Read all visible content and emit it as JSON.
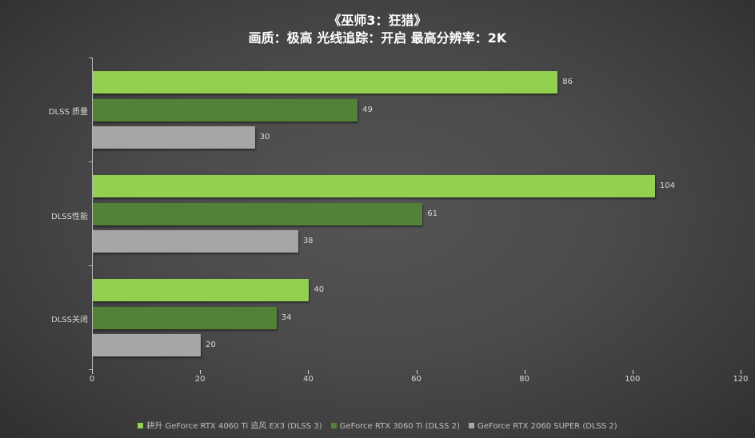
{
  "title_line1": "《巫师3：狂猎》",
  "title_line2": "画质：极高  光线追踪：开启  最高分辨率：2K",
  "colors": {
    "series1": "#92d050",
    "series2": "#538135",
    "series3": "#a6a6a6"
  },
  "legend": [
    {
      "label": "耕升 GeForce RTX 4060 Ti 追风 EX3   (DLSS 3)",
      "color": "#92d050"
    },
    {
      "label": "GeForce RTX 3060 Ti  (DLSS 2)",
      "color": "#538135"
    },
    {
      "label": "GeForce RTX 2060 SUPER  (DLSS 2)",
      "color": "#a6a6a6"
    }
  ],
  "chart_data": {
    "type": "bar",
    "orientation": "horizontal",
    "title": "《巫师3：狂猎》 画质：极高  光线追踪：开启  最高分辨率：2K",
    "categories": [
      "DLSS 质量",
      "DLSS性能",
      "DLSS关闭"
    ],
    "series": [
      {
        "name": "耕升 GeForce RTX 4060 Ti 追风 EX3   (DLSS 3)",
        "color": "#92d050",
        "values": [
          86,
          104,
          40
        ]
      },
      {
        "name": "GeForce RTX 3060 Ti  (DLSS 2)",
        "color": "#538135",
        "values": [
          49,
          61,
          34
        ]
      },
      {
        "name": "GeForce RTX 2060 SUPER  (DLSS 2)",
        "color": "#a6a6a6",
        "values": [
          30,
          38,
          20
        ]
      }
    ],
    "xlabel": "",
    "ylabel": "",
    "xlim": [
      0,
      120
    ],
    "xticks": [
      "0",
      "20",
      "40",
      "60",
      "80",
      "100",
      "120"
    ],
    "grid": false,
    "legend_position": "bottom",
    "data_labels": true
  },
  "value_labels": {
    "g0": [
      "86",
      "49",
      "30"
    ],
    "g1": [
      "104",
      "61",
      "38"
    ],
    "g2": [
      "40",
      "34",
      "20"
    ]
  }
}
